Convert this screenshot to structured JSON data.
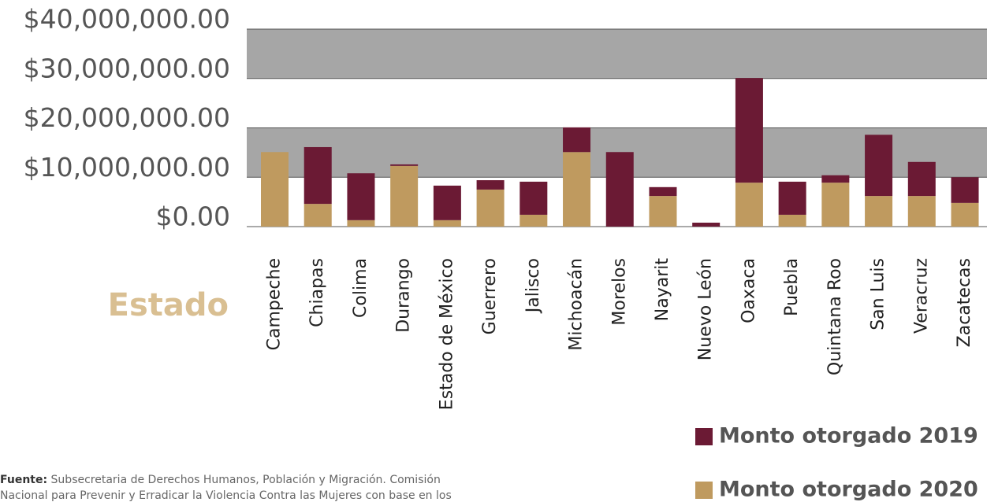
{
  "chart_data": {
    "type": "stacked_bar",
    "x_axis_label": "Estado",
    "categories": [
      "Campeche",
      "Chiapas",
      "Colima",
      "Durango",
      "Estado de México",
      "Guerrero",
      "Jalisco",
      "Michoacán",
      "Morelos",
      "Nayarit",
      "Nuevo León",
      "Oaxaca",
      "Puebla",
      "Quintana Roo",
      "San Luis",
      "Veracruz",
      "Zacatecas"
    ],
    "series": [
      {
        "name": "Monto otorgado 2020",
        "color": "#bf9a5f",
        "values": [
          15100000,
          4600000,
          1300000,
          12300000,
          1300000,
          7500000,
          2400000,
          15100000,
          0,
          6200000,
          0,
          8900000,
          2400000,
          8900000,
          6200000,
          6200000,
          4800000
        ]
      },
      {
        "name": "Monto otorgado 2019",
        "color": "#6b1a34",
        "values": [
          0,
          11500000,
          9500000,
          300000,
          7000000,
          1900000,
          6700000,
          5000000,
          15100000,
          1800000,
          800000,
          21200000,
          6700000,
          1500000,
          12400000,
          6900000,
          5200000
        ]
      }
    ],
    "ylim": [
      0,
      40000000
    ],
    "yticks": [
      {
        "value": 0,
        "label": "$0.00"
      },
      {
        "value": 10000000,
        "label": "$10,000,000.00"
      },
      {
        "value": 20000000,
        "label": "$20,000,000.00"
      },
      {
        "value": 30000000,
        "label": "$30,000,000.00"
      },
      {
        "value": 40000000,
        "label": "$40,000,000.00"
      }
    ],
    "grid": true,
    "legend_position": "bottom-right",
    "note_label": "Fuente:",
    "note_lines": [
      "Subsecretaria de Derechos Humanos, Población y Migración. Comisión",
      "Nacional para Prevenir y Erradicar la Violencia Contra las Mujeres con base en los"
    ]
  }
}
